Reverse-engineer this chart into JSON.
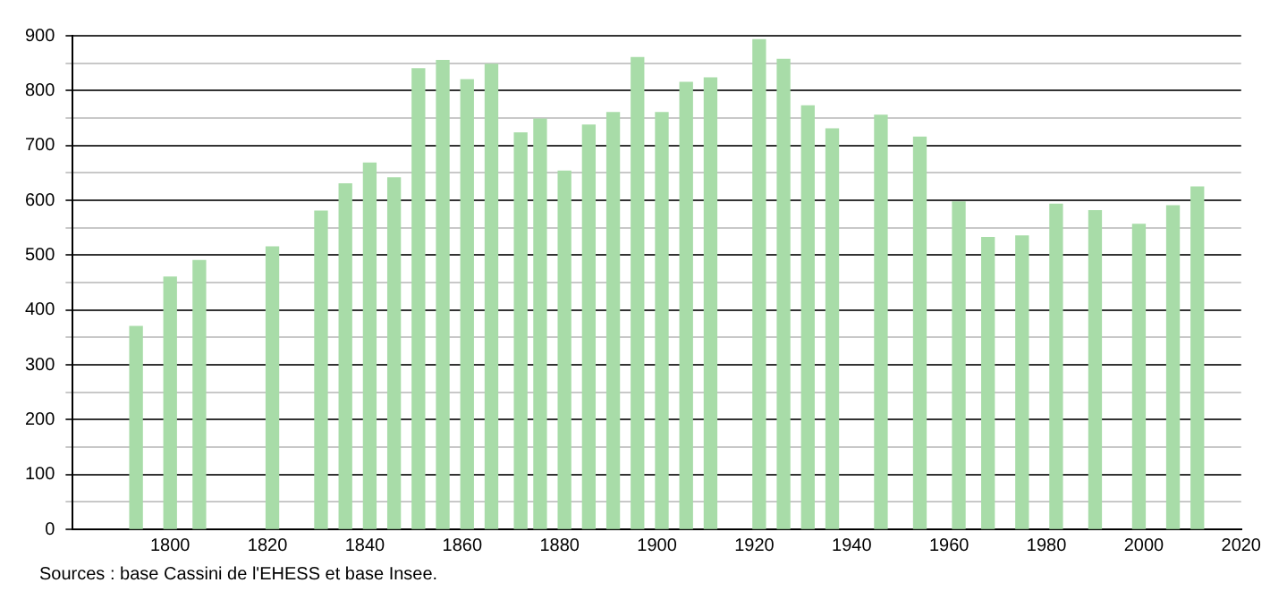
{
  "chart_data": {
    "type": "bar",
    "x": [
      1793,
      1800,
      1806,
      1821,
      1831,
      1836,
      1841,
      1846,
      1851,
      1856,
      1861,
      1866,
      1872,
      1876,
      1881,
      1886,
      1891,
      1896,
      1901,
      1906,
      1911,
      1921,
      1926,
      1931,
      1936,
      1946,
      1954,
      1962,
      1968,
      1975,
      1982,
      1990,
      1999,
      2006,
      2011
    ],
    "values": [
      370,
      460,
      490,
      515,
      580,
      630,
      668,
      641,
      840,
      855,
      820,
      848,
      723,
      748,
      653,
      737,
      760,
      860,
      760,
      815,
      823,
      893,
      857,
      772,
      730,
      755,
      715,
      597,
      532,
      535,
      593,
      581,
      556,
      590,
      624
    ],
    "color": "#a8dca8",
    "xlim": [
      1780,
      2020
    ],
    "xticks": [
      1800,
      1820,
      1840,
      1860,
      1880,
      1900,
      1920,
      1940,
      1960,
      1980,
      2000,
      2020
    ],
    "ylim": [
      0,
      900
    ],
    "yticks": [
      0,
      {
        "value": 50,
        "label": null
      },
      100,
      {
        "value": 150,
        "label": null
      },
      200,
      {
        "value": 250,
        "label": null
      },
      300,
      {
        "value": 350,
        "label": null
      },
      400,
      {
        "value": 450,
        "label": null
      },
      500,
      {
        "value": 550,
        "label": null
      },
      600,
      {
        "value": 650,
        "label": null
      },
      700,
      {
        "value": 750,
        "label": null
      },
      800,
      {
        "value": 850,
        "label": null
      },
      900
    ],
    "grid": "y",
    "legend": false,
    "annotations": [
      "Sources : base Cassini de l'EHESS et base Insee."
    ]
  }
}
